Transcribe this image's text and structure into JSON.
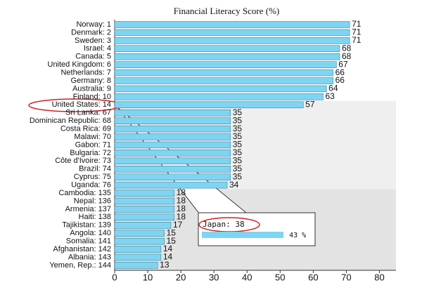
{
  "chart_data": {
    "type": "hbar",
    "title": "Financial Literacy Score (%)",
    "categories": [
      "Norway: 1",
      "Denmark: 2",
      "Sweden: 3",
      "Israel: 4",
      "Canada: 5",
      "United Kingdom: 6",
      "Netherlands: 7",
      "Germany: 8",
      "Australia: 9",
      "Finland: 10",
      "United States: 14",
      "Sri Lanka: 67",
      "Dominican Republic: 68",
      "Costa Rica: 69",
      "Malawi: 70",
      "Gabon: 71",
      "Bulgaria: 72",
      "Côte d'Ivoire: 73",
      "Brazil: 74",
      "Cyprus: 75",
      "Uganda: 76",
      "Cambodia: 135",
      "Nepal: 136",
      "Armenia: 137",
      "Haiti: 138",
      "Tajikistan: 139",
      "Angola: 140",
      "Somalia: 141",
      "Afghanistan: 142",
      "Albania: 143",
      "Yemen, Rep.: 144"
    ],
    "values": [
      71,
      71,
      71,
      68,
      68,
      67,
      66,
      66,
      64,
      63,
      57,
      35,
      35,
      35,
      35,
      35,
      35,
      35,
      35,
      35,
      34,
      18,
      18,
      18,
      18,
      17,
      15,
      15,
      14,
      14,
      13
    ],
    "color": "#7fd4f2",
    "xlim": [
      0,
      85
    ],
    "xticks": [
      0,
      10,
      20,
      30,
      40,
      50,
      60,
      70,
      80
    ],
    "annotations": [
      {
        "text": "Japan: 38",
        "value": 43,
        "value_label": "43 %"
      }
    ]
  }
}
